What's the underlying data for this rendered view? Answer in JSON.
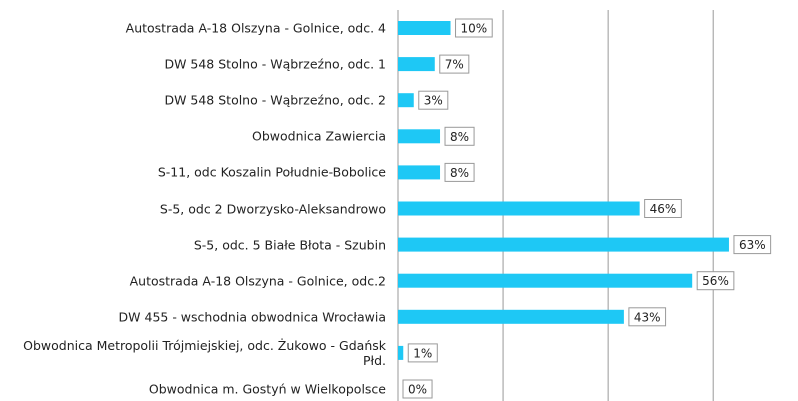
{
  "chart_data": {
    "type": "bar",
    "orientation": "horizontal",
    "categories": [
      "Autostrada A-18 Olszyna - Golnice, odc. 4",
      "DW 548 Stolno - Wąbrzeźno, odc. 1",
      "DW 548 Stolno - Wąbrzeźno, odc. 2",
      "Obwodnica Zawiercia",
      "S-11, odc Koszalin Południe-Bobolice",
      "S-5, odc 2 Dworzysko-Aleksandrowo",
      "S-5, odc. 5 Białe Błota - Szubin",
      "Autostrada A-18 Olszyna - Golnice, odc.2",
      "DW 455 - wschodnia obwodnica Wrocławia",
      "Obwodnica Metropolii Trójmiejskiej, odc. Żukowo - Gdańsk Płd.",
      "Obwodnica m. Gostyń w Wielkopolsce"
    ],
    "values": [
      10,
      7,
      3,
      8,
      8,
      46,
      63,
      56,
      43,
      1,
      0
    ],
    "value_labels": [
      "10%",
      "7%",
      "3%",
      "8%",
      "8%",
      "46%",
      "63%",
      "56%",
      "43%",
      "1%",
      "0%"
    ],
    "color": "#1ec8f5",
    "xlim": [
      0,
      75
    ],
    "xticks": [
      0,
      20,
      40,
      60
    ],
    "grid": true
  }
}
